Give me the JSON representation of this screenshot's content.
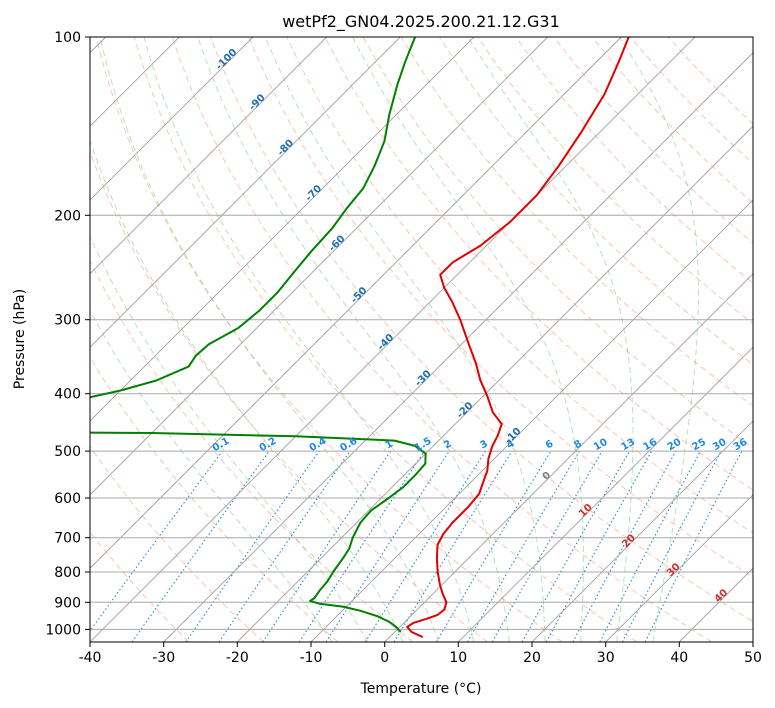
{
  "chart_data": {
    "type": "skew-t",
    "title": "wetPf2_GN04.2025.200.21.12.G31",
    "xlabel": "Temperature (°C)",
    "ylabel": "Pressure (hPa)",
    "xlim": [
      -40,
      50
    ],
    "ylim": [
      1050,
      100
    ],
    "y_scale": "log",
    "grid": true,
    "x_ticks": [
      "-40",
      "-30",
      "-20",
      "-10",
      "0",
      "10",
      "20",
      "30",
      "40",
      "50"
    ],
    "y_ticks": [
      "100",
      "200",
      "300",
      "400",
      "500",
      "600",
      "700",
      "800",
      "900",
      "1000"
    ],
    "x_tick_values": [
      -40,
      -30,
      -20,
      -10,
      0,
      10,
      20,
      30,
      40,
      50
    ],
    "y_tick_values": [
      100,
      200,
      300,
      400,
      500,
      600,
      700,
      800,
      900,
      1000
    ],
    "isotherms_C": [
      -150,
      -140,
      -130,
      -120,
      -110,
      -100,
      -90,
      -80,
      -70,
      -60,
      -50,
      -40,
      -30,
      -20,
      -10,
      0,
      10,
      20,
      30,
      40,
      50
    ],
    "isotherm_labels": [
      {
        "text": "-100",
        "T": -100,
        "p": 110
      },
      {
        "text": "-90",
        "T": -90,
        "p": 130
      },
      {
        "text": "-80",
        "T": -80,
        "p": 155
      },
      {
        "text": "-70",
        "T": -70,
        "p": 185
      },
      {
        "text": "-60",
        "T": -60,
        "p": 225
      },
      {
        "text": "-50",
        "T": -50,
        "p": 275
      },
      {
        "text": "-40",
        "T": -40,
        "p": 330
      },
      {
        "text": "-30",
        "T": -30,
        "p": 380
      },
      {
        "text": "-20",
        "T": -20,
        "p": 430
      },
      {
        "text": "-10",
        "T": -10,
        "p": 475
      },
      {
        "text": "0",
        "T": 0,
        "p": 555
      }
    ],
    "temp_labels": [
      {
        "text": "10",
        "T": 10,
        "p": 635
      },
      {
        "text": "20",
        "T": 20,
        "p": 715
      },
      {
        "text": "30",
        "T": 30,
        "p": 800
      },
      {
        "text": "40",
        "T": 40,
        "p": 885
      }
    ],
    "mixing_ratio_labels": [
      "0.1",
      "0.2",
      "0.4",
      "0.6",
      "1",
      "1.5",
      "2",
      "3",
      "4",
      "6",
      "8",
      "10",
      "13",
      "16",
      "20",
      "25",
      "30",
      "36"
    ],
    "mixing_ratio_values": [
      0.1,
      0.2,
      0.4,
      0.6,
      1,
      1.5,
      2,
      3,
      4,
      6,
      8,
      10,
      13,
      16,
      20,
      25,
      30,
      36
    ],
    "dry_adiabats_C": [
      -30,
      -20,
      -10,
      0,
      10,
      20,
      30,
      40,
      50,
      60,
      70,
      80,
      90,
      100,
      110,
      120,
      130,
      140,
      150,
      160,
      170
    ],
    "moist_adiabats_C": [
      -10,
      -5,
      0,
      5,
      10,
      15,
      20,
      25,
      30,
      35
    ],
    "series": [
      {
        "name": "temperature",
        "color": "#e00000",
        "points": [
          [
            1030,
            4.5
          ],
          [
            1010,
            2.3
          ],
          [
            990,
            1.0
          ],
          [
            975,
            1.3
          ],
          [
            960,
            2.5
          ],
          [
            945,
            3.5
          ],
          [
            925,
            3.7
          ],
          [
            900,
            3.0
          ],
          [
            870,
            1.3
          ],
          [
            840,
            -0.3
          ],
          [
            800,
            -2.3
          ],
          [
            760,
            -4.2
          ],
          [
            720,
            -6.0
          ],
          [
            690,
            -6.7
          ],
          [
            660,
            -7.0
          ],
          [
            620,
            -7.0
          ],
          [
            590,
            -7.3
          ],
          [
            560,
            -8.5
          ],
          [
            540,
            -9.3
          ],
          [
            515,
            -10.8
          ],
          [
            490,
            -12.0
          ],
          [
            470,
            -12.7
          ],
          [
            450,
            -13.7
          ],
          [
            430,
            -16.5
          ],
          [
            405,
            -19.3
          ],
          [
            380,
            -22.5
          ],
          [
            355,
            -25.5
          ],
          [
            330,
            -29.0
          ],
          [
            300,
            -33.5
          ],
          [
            280,
            -37.0
          ],
          [
            265,
            -40.0
          ],
          [
            252,
            -42.3
          ],
          [
            240,
            -42.3
          ],
          [
            225,
            -40.8
          ],
          [
            205,
            -40.0
          ],
          [
            185,
            -40.0
          ],
          [
            165,
            -41.0
          ],
          [
            145,
            -42.5
          ],
          [
            125,
            -44.5
          ],
          [
            110,
            -47.0
          ],
          [
            100,
            -49.0
          ]
        ]
      },
      {
        "name": "dewpoint",
        "color": "#008000",
        "points": [
          [
            1010,
            0.8
          ],
          [
            990,
            -0.5
          ],
          [
            970,
            -2.2
          ],
          [
            950,
            -4.5
          ],
          [
            930,
            -7.5
          ],
          [
            915,
            -10.5
          ],
          [
            905,
            -14.0
          ],
          [
            895,
            -15.7
          ],
          [
            885,
            -15.5
          ],
          [
            860,
            -15.8
          ],
          [
            830,
            -16.0
          ],
          [
            800,
            -16.5
          ],
          [
            760,
            -17.0
          ],
          [
            730,
            -17.5
          ],
          [
            700,
            -18.5
          ],
          [
            660,
            -19.5
          ],
          [
            630,
            -19.7
          ],
          [
            600,
            -19.0
          ],
          [
            575,
            -18.5
          ],
          [
            550,
            -18.5
          ],
          [
            525,
            -18.7
          ],
          [
            505,
            -20.0
          ],
          [
            490,
            -22.5
          ],
          [
            480,
            -26.0
          ],
          [
            472,
            -40.0
          ],
          [
            466,
            -60.0
          ],
          [
            463,
            -95.0
          ],
          [
            420,
            -79.0
          ],
          [
            410,
            -74.5
          ],
          [
            395,
            -70.0
          ],
          [
            380,
            -66.5
          ],
          [
            360,
            -64.0
          ],
          [
            345,
            -64.5
          ],
          [
            330,
            -64.3
          ],
          [
            310,
            -62.5
          ],
          [
            290,
            -62.0
          ],
          [
            270,
            -62.0
          ],
          [
            250,
            -62.5
          ],
          [
            230,
            -63.0
          ],
          [
            210,
            -63.3
          ],
          [
            195,
            -64.0
          ],
          [
            180,
            -64.5
          ],
          [
            165,
            -66.0
          ],
          [
            150,
            -68.0
          ],
          [
            135,
            -71.0
          ],
          [
            120,
            -74.0
          ],
          [
            110,
            -76.0
          ],
          [
            100,
            -78.0
          ]
        ]
      }
    ]
  }
}
